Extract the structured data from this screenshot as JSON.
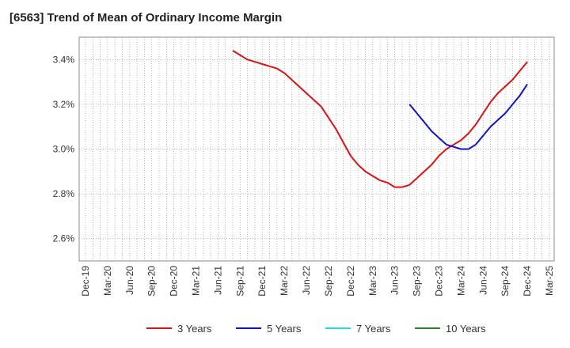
{
  "title": "[6563]  Trend of Mean of Ordinary Income Margin",
  "chart_data": {
    "type": "line",
    "title": "[6563]  Trend of Mean of Ordinary Income Margin",
    "xlabel": "",
    "ylabel": "",
    "ylim": [
      2.5,
      3.5
    ],
    "yticks": [
      2.6,
      2.8,
      3.0,
      3.2,
      3.4
    ],
    "ytick_labels": [
      "2.6%",
      "2.8%",
      "3.0%",
      "3.2%",
      "3.4%"
    ],
    "x_tick_labels": [
      "Dec-19",
      "Mar-20",
      "Jun-20",
      "Sep-20",
      "Dec-20",
      "Mar-21",
      "Jun-21",
      "Sep-21",
      "Dec-21",
      "Mar-22",
      "Jun-22",
      "Sep-22",
      "Dec-22",
      "Mar-23",
      "Jun-23",
      "Sep-23",
      "Dec-23",
      "Mar-24",
      "Jun-24",
      "Sep-24",
      "Dec-24",
      "Mar-25"
    ],
    "grid": true,
    "legend_position": "bottom",
    "series": [
      {
        "name": "3 Years",
        "color": "#dd1111",
        "points": [
          [
            "Aug-21",
            3.44
          ],
          [
            "Sep-21",
            3.42
          ],
          [
            "Oct-21",
            3.4
          ],
          [
            "Nov-21",
            3.39
          ],
          [
            "Dec-21",
            3.38
          ],
          [
            "Jan-22",
            3.37
          ],
          [
            "Feb-22",
            3.36
          ],
          [
            "Mar-22",
            3.34
          ],
          [
            "Apr-22",
            3.31
          ],
          [
            "May-22",
            3.28
          ],
          [
            "Jun-22",
            3.25
          ],
          [
            "Jul-22",
            3.22
          ],
          [
            "Aug-22",
            3.19
          ],
          [
            "Sep-22",
            3.14
          ],
          [
            "Oct-22",
            3.09
          ],
          [
            "Nov-22",
            3.03
          ],
          [
            "Dec-22",
            2.97
          ],
          [
            "Jan-23",
            2.93
          ],
          [
            "Feb-23",
            2.9
          ],
          [
            "Mar-23",
            2.88
          ],
          [
            "Apr-23",
            2.86
          ],
          [
            "May-23",
            2.85
          ],
          [
            "Jun-23",
            2.83
          ],
          [
            "Jul-23",
            2.83
          ],
          [
            "Aug-23",
            2.84
          ],
          [
            "Sep-23",
            2.87
          ],
          [
            "Oct-23",
            2.9
          ],
          [
            "Nov-23",
            2.93
          ],
          [
            "Dec-23",
            2.97
          ],
          [
            "Jan-24",
            3.0
          ],
          [
            "Feb-24",
            3.02
          ],
          [
            "Mar-24",
            3.04
          ],
          [
            "Apr-24",
            3.07
          ],
          [
            "May-24",
            3.11
          ],
          [
            "Jun-24",
            3.16
          ],
          [
            "Jul-24",
            3.21
          ],
          [
            "Aug-24",
            3.25
          ],
          [
            "Sep-24",
            3.28
          ],
          [
            "Oct-24",
            3.31
          ],
          [
            "Nov-24",
            3.35
          ],
          [
            "Dec-24",
            3.39
          ]
        ]
      },
      {
        "name": "5 Years",
        "color": "#1111cc",
        "points": [
          [
            "Aug-23",
            3.2
          ],
          [
            "Sep-23",
            3.16
          ],
          [
            "Oct-23",
            3.12
          ],
          [
            "Nov-23",
            3.08
          ],
          [
            "Dec-23",
            3.05
          ],
          [
            "Jan-24",
            3.02
          ],
          [
            "Feb-24",
            3.01
          ],
          [
            "Mar-24",
            3.0
          ],
          [
            "Apr-24",
            3.0
          ],
          [
            "May-24",
            3.02
          ],
          [
            "Jun-24",
            3.06
          ],
          [
            "Jul-24",
            3.1
          ],
          [
            "Aug-24",
            3.13
          ],
          [
            "Sep-24",
            3.16
          ],
          [
            "Oct-24",
            3.2
          ],
          [
            "Nov-24",
            3.24
          ],
          [
            "Dec-24",
            3.29
          ]
        ]
      },
      {
        "name": "7 Years",
        "color": "#22dddd",
        "points": []
      },
      {
        "name": "10 Years",
        "color": "#228822",
        "points": []
      }
    ]
  }
}
